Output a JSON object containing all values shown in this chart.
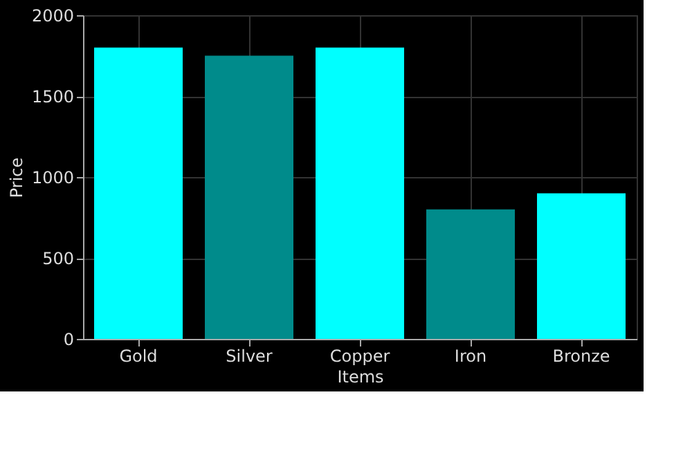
{
  "chart_data": {
    "type": "bar",
    "xlabel": "Items",
    "ylabel": "Price",
    "categories": [
      "Gold",
      "Silver",
      "Copper",
      "Iron",
      "Bronze"
    ],
    "values": [
      1800,
      1750,
      1800,
      800,
      900
    ],
    "colors": [
      "#00ffff",
      "#008b8b",
      "#00ffff",
      "#008b8b",
      "#00ffff"
    ],
    "ylim": [
      0,
      2000
    ],
    "yticks": [
      0,
      500,
      1000,
      1500,
      2000
    ],
    "grid": true
  }
}
